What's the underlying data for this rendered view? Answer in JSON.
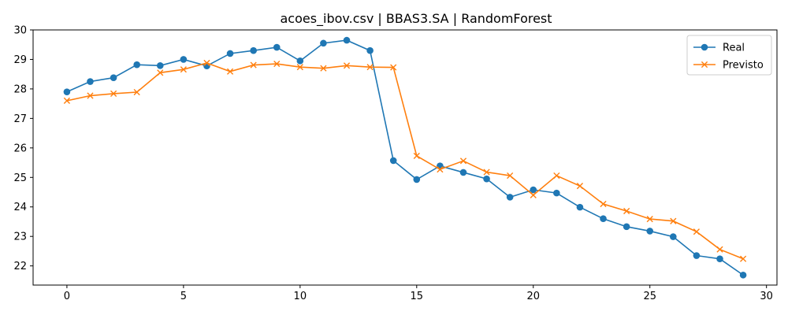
{
  "chart_data": {
    "type": "line",
    "title": "acoes_ibov.csv | BBAS3.SA | RandomForest",
    "xlabel": "",
    "ylabel": "",
    "x": [
      0,
      1,
      2,
      3,
      4,
      5,
      6,
      7,
      8,
      9,
      10,
      11,
      12,
      13,
      14,
      15,
      16,
      17,
      18,
      19,
      20,
      21,
      22,
      23,
      24,
      25,
      26,
      27,
      28,
      29
    ],
    "xlim": [
      -1.45,
      30.45
    ],
    "ylim": [
      21.35,
      30.0
    ],
    "xticks": [
      0,
      5,
      10,
      15,
      20,
      25,
      30
    ],
    "yticks": [
      22,
      23,
      24,
      25,
      26,
      27,
      28,
      29,
      30
    ],
    "grid": false,
    "legend_position": "top-right",
    "series": [
      {
        "name": "Real",
        "color": "#1f77b4",
        "marker": "circle",
        "values": [
          27.9,
          28.25,
          28.38,
          28.82,
          28.79,
          29.0,
          28.78,
          29.2,
          29.3,
          29.41,
          28.95,
          29.55,
          29.65,
          29.3,
          25.57,
          24.93,
          25.39,
          25.17,
          24.95,
          24.33,
          24.58,
          24.47,
          23.99,
          23.6,
          23.33,
          23.18,
          22.99,
          22.35,
          22.24,
          21.69
        ]
      },
      {
        "name": "Previsto",
        "color": "#ff7f0e",
        "marker": "x",
        "values": [
          27.6,
          27.77,
          27.84,
          27.89,
          28.55,
          28.66,
          28.88,
          28.59,
          28.81,
          28.85,
          28.74,
          28.7,
          28.79,
          28.74,
          28.73,
          25.73,
          25.27,
          25.56,
          25.18,
          25.06,
          24.4,
          25.06,
          24.71,
          24.1,
          23.86,
          23.59,
          23.52,
          23.16,
          22.56,
          22.24
        ]
      }
    ]
  }
}
